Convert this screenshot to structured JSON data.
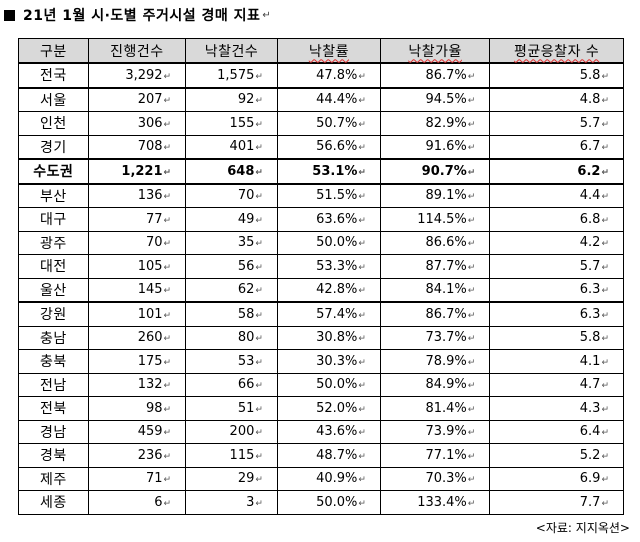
{
  "title": "21년 1월 시·도별 주거시설 경매 지표",
  "headers": [
    "구분",
    "진행건수",
    "낙찰건수",
    "낙찰률",
    "낙찰가율",
    "평균응찰자 수"
  ],
  "rows": [
    {
      "region": "전국",
      "cases": "3,292",
      "won": "1,575",
      "rate": "47.8%",
      "price_rate": "86.7%",
      "bidders": "5.8"
    },
    {
      "region": "서울",
      "cases": "207",
      "won": "92",
      "rate": "44.4%",
      "price_rate": "94.5%",
      "bidders": "4.8"
    },
    {
      "region": "인천",
      "cases": "306",
      "won": "155",
      "rate": "50.7%",
      "price_rate": "82.9%",
      "bidders": "5.7"
    },
    {
      "region": "경기",
      "cases": "708",
      "won": "401",
      "rate": "56.6%",
      "price_rate": "91.6%",
      "bidders": "6.7"
    },
    {
      "region": "수도권",
      "cases": "1,221",
      "won": "648",
      "rate": "53.1%",
      "price_rate": "90.7%",
      "bidders": "6.2"
    },
    {
      "region": "부산",
      "cases": "136",
      "won": "70",
      "rate": "51.5%",
      "price_rate": "89.1%",
      "bidders": "4.4"
    },
    {
      "region": "대구",
      "cases": "77",
      "won": "49",
      "rate": "63.6%",
      "price_rate": "114.5%",
      "bidders": "6.8"
    },
    {
      "region": "광주",
      "cases": "70",
      "won": "35",
      "rate": "50.0%",
      "price_rate": "86.6%",
      "bidders": "4.2"
    },
    {
      "region": "대전",
      "cases": "105",
      "won": "56",
      "rate": "53.3%",
      "price_rate": "87.7%",
      "bidders": "5.7"
    },
    {
      "region": "울산",
      "cases": "145",
      "won": "62",
      "rate": "42.8%",
      "price_rate": "84.1%",
      "bidders": "6.3"
    },
    {
      "region": "강원",
      "cases": "101",
      "won": "58",
      "rate": "57.4%",
      "price_rate": "86.7%",
      "bidders": "6.3"
    },
    {
      "region": "충남",
      "cases": "260",
      "won": "80",
      "rate": "30.8%",
      "price_rate": "73.7%",
      "bidders": "5.8"
    },
    {
      "region": "충북",
      "cases": "175",
      "won": "53",
      "rate": "30.3%",
      "price_rate": "78.9%",
      "bidders": "4.1"
    },
    {
      "region": "전남",
      "cases": "132",
      "won": "66",
      "rate": "50.0%",
      "price_rate": "84.9%",
      "bidders": "4.7"
    },
    {
      "region": "전북",
      "cases": "98",
      "won": "51",
      "rate": "52.0%",
      "price_rate": "81.4%",
      "bidders": "4.3"
    },
    {
      "region": "경남",
      "cases": "459",
      "won": "200",
      "rate": "43.6%",
      "price_rate": "73.9%",
      "bidders": "6.4"
    },
    {
      "region": "경북",
      "cases": "236",
      "won": "115",
      "rate": "48.7%",
      "price_rate": "77.1%",
      "bidders": "5.2"
    },
    {
      "region": "제주",
      "cases": "71",
      "won": "29",
      "rate": "40.9%",
      "price_rate": "70.3%",
      "bidders": "6.9"
    },
    {
      "region": "세종",
      "cases": "6",
      "won": "3",
      "rate": "50.0%",
      "price_rate": "133.4%",
      "bidders": "7.7"
    }
  ],
  "source": "<자료: 지지옥션>"
}
